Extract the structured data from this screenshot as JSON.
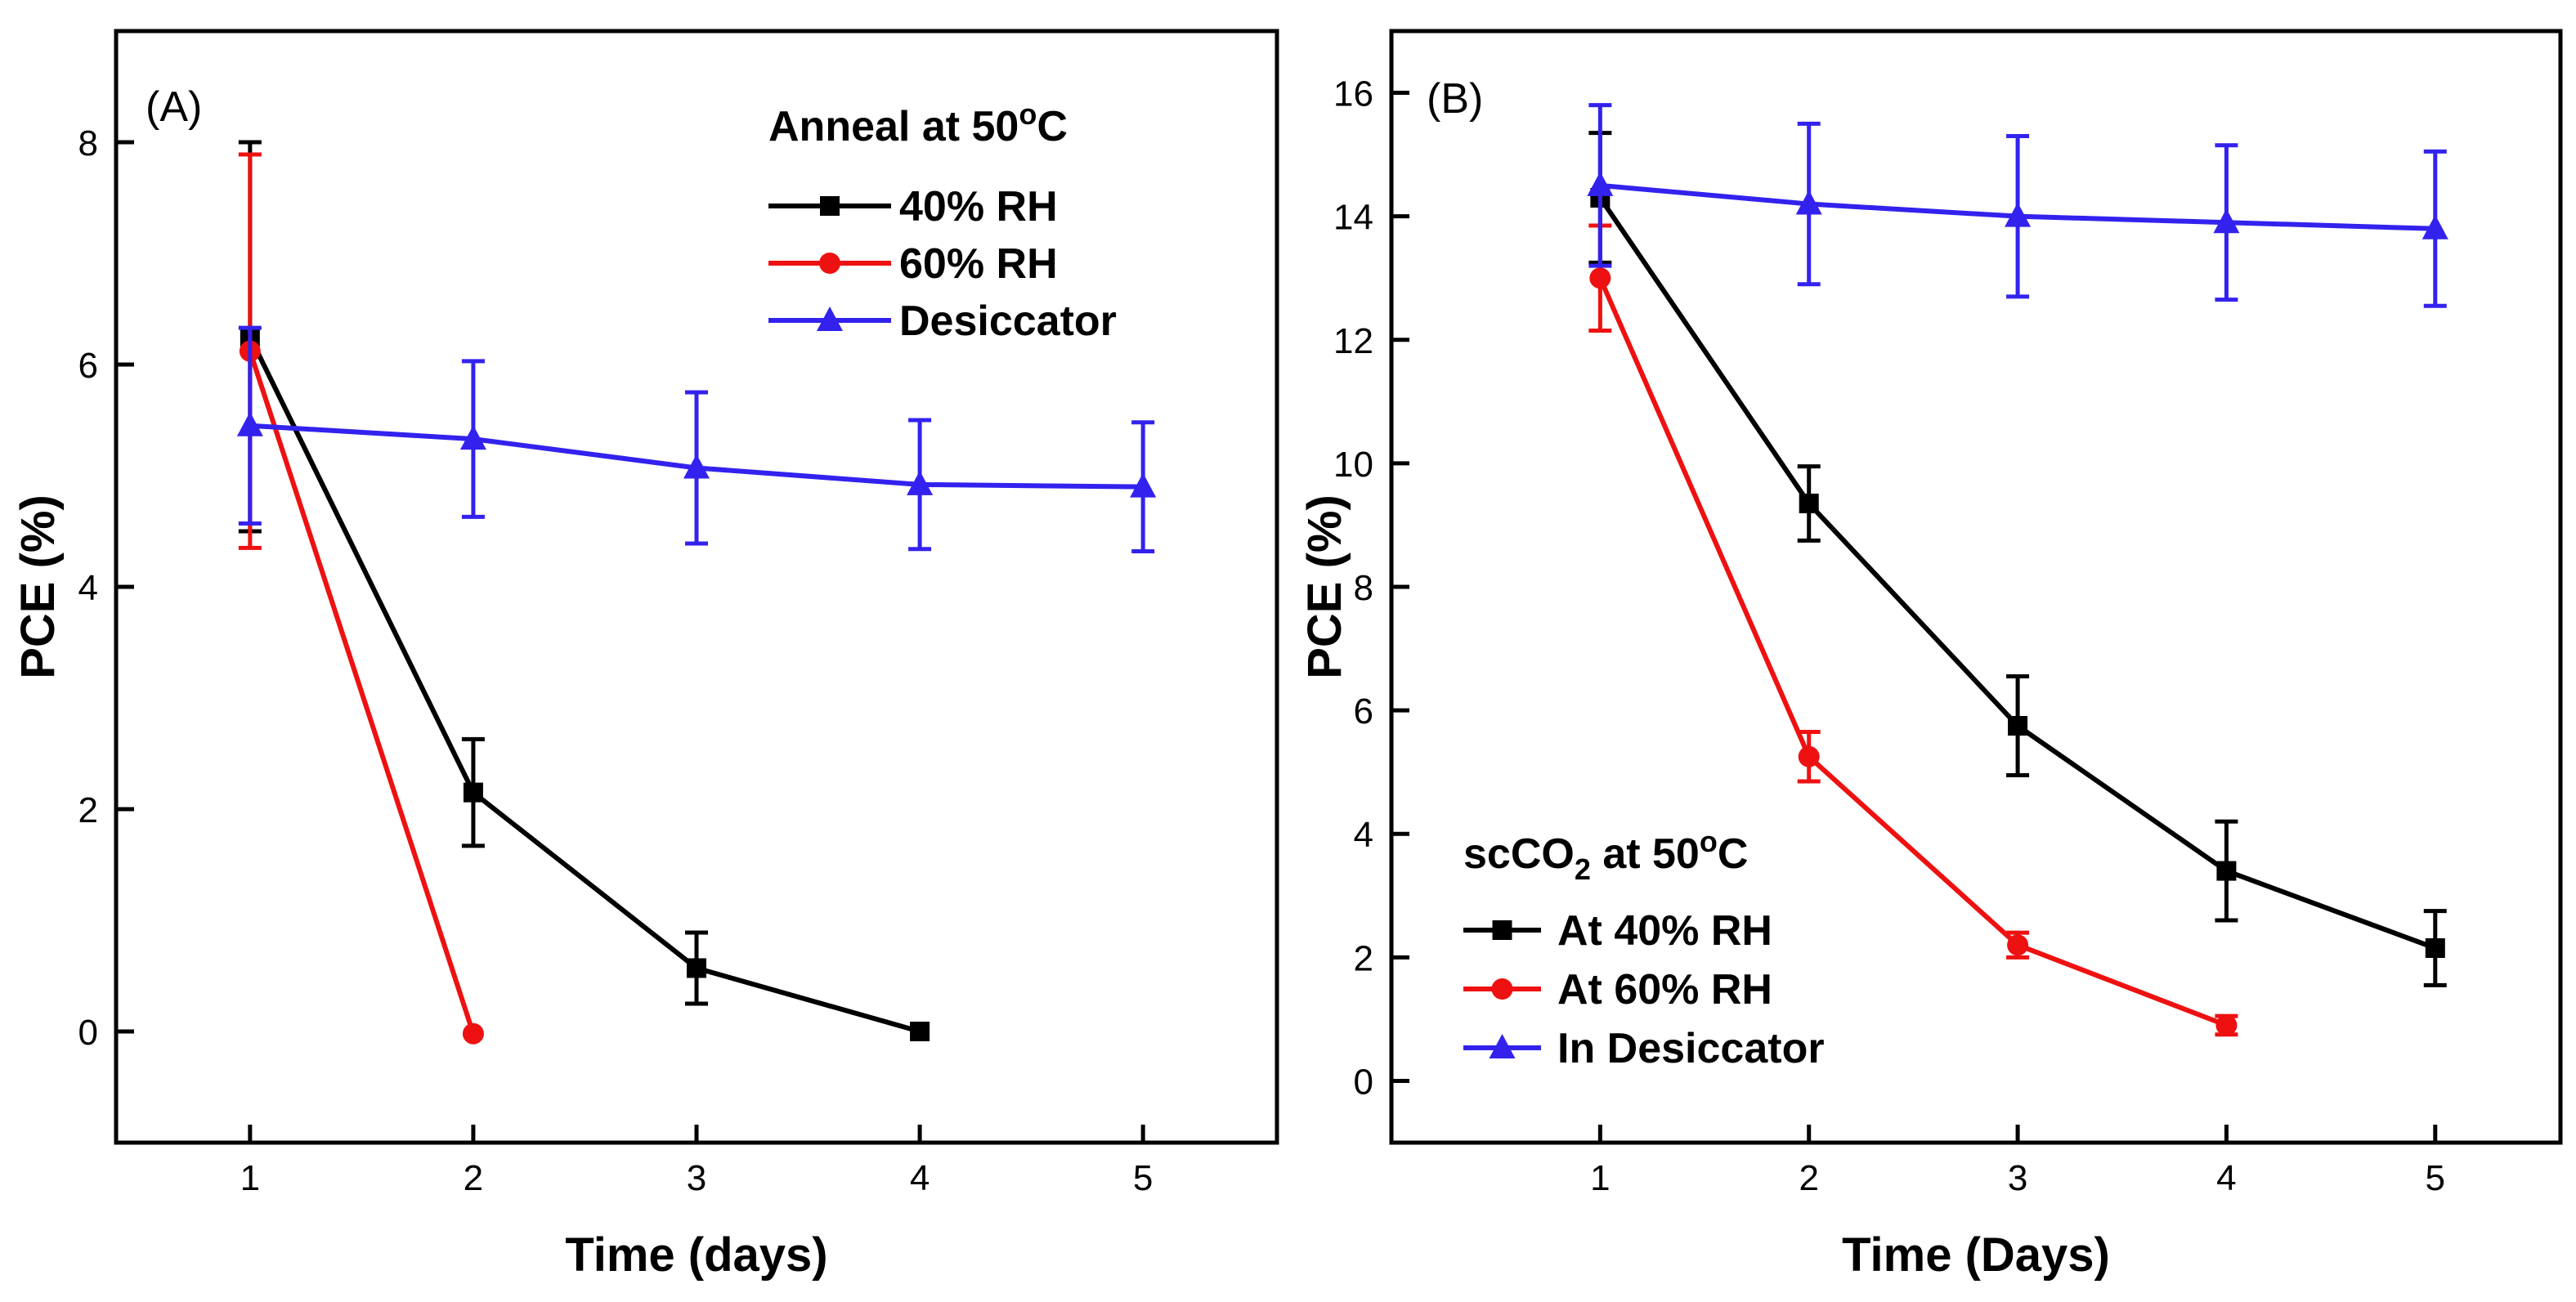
{
  "chart_data": [
    {
      "type": "line",
      "panel_label": "(A)",
      "xlabel": "Time (days)",
      "ylabel": "PCE (%)",
      "xlim": [
        0.4,
        5.6
      ],
      "ylim": [
        -1,
        9
      ],
      "xticks": [
        1,
        2,
        3,
        4,
        5
      ],
      "yticks": [
        0,
        2,
        4,
        6,
        8
      ],
      "legend": {
        "title": "Anneal at 50",
        "title_superscript": "o",
        "title_suffix": "C",
        "position": "top-right"
      },
      "series": [
        {
          "name": "40% RH",
          "color": "#000000",
          "marker": "square",
          "x": [
            1,
            2,
            3,
            4
          ],
          "y": [
            6.25,
            2.15,
            0.57,
            0.0
          ],
          "err": [
            1.75,
            0.48,
            0.32,
            0.0
          ]
        },
        {
          "name": "60% RH",
          "color": "#ee1111",
          "marker": "circle",
          "x": [
            1,
            2
          ],
          "y": [
            6.12,
            -0.02
          ],
          "err": [
            1.77,
            0.0
          ]
        },
        {
          "name": "Desiccator",
          "color": "#3322ee",
          "marker": "triangle",
          "x": [
            1,
            2,
            3,
            4,
            5
          ],
          "y": [
            5.45,
            5.33,
            5.07,
            4.92,
            4.9
          ],
          "err": [
            0.88,
            0.7,
            0.68,
            0.58,
            0.58
          ]
        }
      ]
    },
    {
      "type": "line",
      "panel_label": "(B)",
      "xlabel": "Time (Days)",
      "ylabel": "PCE (%)",
      "xlim": [
        0.0,
        5.6
      ],
      "ylim": [
        -1,
        17
      ],
      "xticks": [
        1,
        2,
        3,
        4,
        5
      ],
      "yticks": [
        0,
        2,
        4,
        6,
        8,
        10,
        12,
        14,
        16
      ],
      "legend": {
        "title": "scCO",
        "title_subscript": "2",
        "title_mid": " at 50",
        "title_superscript": "o",
        "title_suffix": "C",
        "position": "bottom-left"
      },
      "series": [
        {
          "name": "At 40% RH",
          "color": "#000000",
          "marker": "square",
          "x": [
            1,
            2,
            3,
            4,
            5
          ],
          "y": [
            14.3,
            9.35,
            5.75,
            3.4,
            2.15
          ],
          "err": [
            1.05,
            0.6,
            0.8,
            0.8,
            0.6
          ]
        },
        {
          "name": "At 60% RH",
          "color": "#ee1111",
          "marker": "circle",
          "x": [
            1,
            2,
            3,
            4
          ],
          "y": [
            13.0,
            5.25,
            2.2,
            0.9
          ],
          "err": [
            0.85,
            0.4,
            0.2,
            0.15
          ]
        },
        {
          "name": "In Desiccator",
          "color": "#3322ee",
          "marker": "triangle",
          "x": [
            1,
            2,
            3,
            4,
            5
          ],
          "y": [
            14.5,
            14.2,
            14.0,
            13.9,
            13.8
          ],
          "err": [
            1.3,
            1.3,
            1.3,
            1.25,
            1.25
          ]
        }
      ]
    }
  ]
}
